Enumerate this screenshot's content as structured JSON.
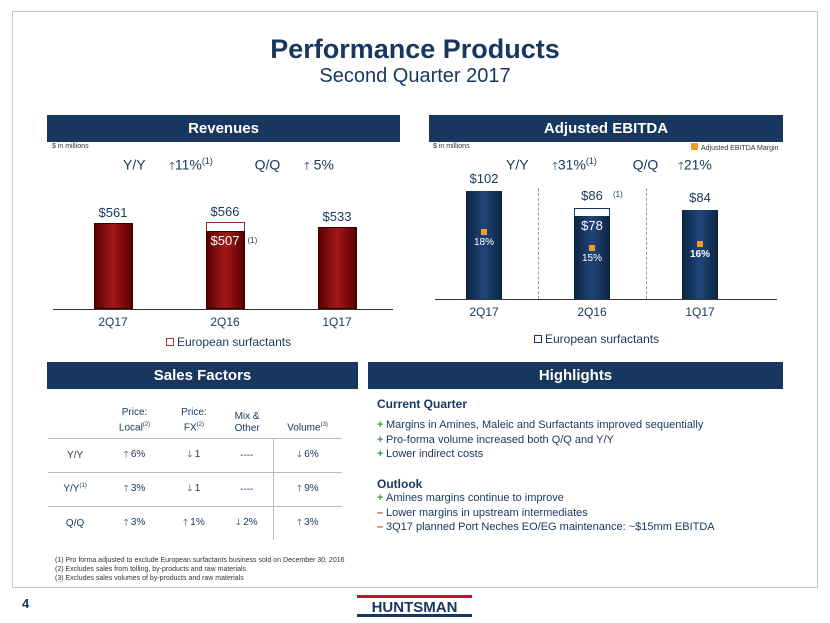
{
  "title": "Performance Products",
  "subtitle": "Second Quarter 2017",
  "revenues": {
    "header": "Revenues",
    "unit_note": "$ in millions",
    "yy_label": "Y/Y",
    "yy_value": "11%",
    "yy_fn": "(1)",
    "qq_label": "Q/Q",
    "qq_value": "5%",
    "legend": "European surfactants",
    "footnote_marker": "(1)",
    "chart_data": {
      "type": "bar",
      "categories": [
        "2Q17",
        "2Q16",
        "1Q17"
      ],
      "values": [
        561,
        566,
        533
      ],
      "adjusted": [
        null,
        507,
        null
      ],
      "value_labels": [
        "$561",
        "$566",
        "$533"
      ],
      "adjusted_label": "$507"
    }
  },
  "ebitda": {
    "header": "Adjusted EBITDA",
    "unit_note": "$ in millions",
    "margin_legend": "Adjusted EBITDA Margin",
    "yy_label": "Y/Y",
    "yy_value": "31%",
    "yy_fn": "(1)",
    "qq_label": "Q/Q",
    "qq_value": "21%",
    "legend": "European surfactants",
    "footnote_marker": "(1)",
    "chart_data": {
      "type": "bar",
      "categories": [
        "2Q17",
        "2Q16",
        "1Q17"
      ],
      "values": [
        102,
        86,
        84
      ],
      "adjusted": [
        null,
        78,
        null
      ],
      "value_labels": [
        "$102",
        "$86",
        "$84"
      ],
      "adjusted_label": "$78",
      "margins": [
        "18%",
        "15%",
        "16%"
      ]
    }
  },
  "sales_factors": {
    "header": "Sales Factors",
    "columns": [
      {
        "line1": "Price:",
        "line2": "Local",
        "sup": "(2)"
      },
      {
        "line1": "Price:",
        "line2": "FX",
        "sup": "(2)"
      },
      {
        "line1": "Mix &",
        "line2": "Other",
        "sup": ""
      },
      {
        "line1": "",
        "line2": "Volume",
        "sup": "(3)"
      }
    ],
    "rows": [
      {
        "label": "Y/Y",
        "sup": "",
        "cells": [
          [
            "up",
            "6%"
          ],
          [
            "down",
            "1"
          ],
          [
            "none",
            "----"
          ],
          [
            "down",
            "6%"
          ]
        ]
      },
      {
        "label": "Y/Y",
        "sup": "(1)",
        "cells": [
          [
            "up",
            "3%"
          ],
          [
            "down",
            "1"
          ],
          [
            "none",
            "----"
          ],
          [
            "up",
            "9%"
          ]
        ]
      },
      {
        "label": "Q/Q",
        "sup": "",
        "cells": [
          [
            "up",
            "3%"
          ],
          [
            "up",
            "1%"
          ],
          [
            "down",
            "2%"
          ],
          [
            "up",
            "3%"
          ]
        ]
      }
    ]
  },
  "highlights": {
    "header": "Highlights",
    "current_heading": "Current Quarter",
    "current_items": [
      {
        "mark": "+",
        "text": "Margins in Amines, Maleic and Surfactants improved sequentially"
      },
      {
        "mark": "+",
        "text": "Pro-forma volume increased both Q/Q and Y/Y"
      },
      {
        "mark": "+",
        "text": "Lower indirect costs"
      }
    ],
    "outlook_heading": "Outlook",
    "outlook_items": [
      {
        "mark": "+",
        "text": "Amines margins continue to improve"
      },
      {
        "mark": "–",
        "text": "Lower margins in upstream intermediates"
      },
      {
        "mark": "–",
        "text": "3Q17 planned Port Neches EO/EG maintenance: ~$15mm EBITDA"
      }
    ]
  },
  "footnotes": [
    "(1) Pro forma adjusted to exclude European surfactants business sold on December 30, 2016",
    "(2) Excludes sales from tolling, by-products and raw materials",
    "(3) Excludes sales volumes of by-products and raw materials"
  ],
  "page_number": "4",
  "logo_text": "HUNTSMAN",
  "colors": {
    "navy": "#17375e",
    "revenue_bar": "#8b1111",
    "ebitda_bar": "#17375e",
    "margin_marker": "#f29b22",
    "plus": "#3aa33a",
    "minus": "#c0392b"
  }
}
